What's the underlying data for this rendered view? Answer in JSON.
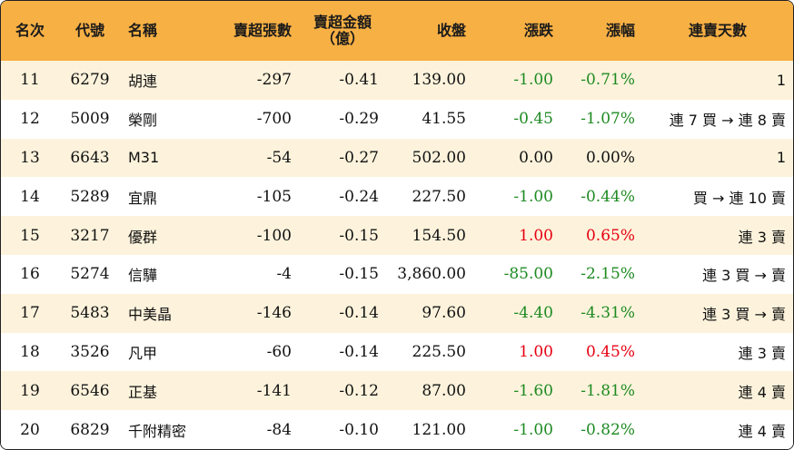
{
  "header": {
    "rank": "名次",
    "code": "代號",
    "name": "名稱",
    "sell_shares": "賣超張數",
    "sell_amount_line1": "賣超金額",
    "sell_amount_line2": "（億）",
    "close": "收盤",
    "change": "漲跌",
    "pct": "漲幅",
    "streak": "連賣天數"
  },
  "colors": {
    "header_bg": "#f7b044",
    "stripe_bg": "#fdf3dc",
    "up": "#e60012",
    "down": "#1e8a22"
  },
  "rows": [
    {
      "rank": "11",
      "code": "6279",
      "name": "胡連",
      "shares": "-297",
      "amount": "-0.41",
      "close": "139.00",
      "change": "-1.00",
      "pct": "-0.71%",
      "dir": "down",
      "streak": "1"
    },
    {
      "rank": "12",
      "code": "5009",
      "name": "榮剛",
      "shares": "-700",
      "amount": "-0.29",
      "close": "41.55",
      "change": "-0.45",
      "pct": "-1.07%",
      "dir": "down",
      "streak": "連 7 買 → 連 8 賣"
    },
    {
      "rank": "13",
      "code": "6643",
      "name": "M31",
      "shares": "-54",
      "amount": "-0.27",
      "close": "502.00",
      "change": "0.00",
      "pct": "0.00%",
      "dir": "flat",
      "streak": "1"
    },
    {
      "rank": "14",
      "code": "5289",
      "name": "宜鼎",
      "shares": "-105",
      "amount": "-0.24",
      "close": "227.50",
      "change": "-1.00",
      "pct": "-0.44%",
      "dir": "down",
      "streak": "買 → 連 10 賣"
    },
    {
      "rank": "15",
      "code": "3217",
      "name": "優群",
      "shares": "-100",
      "amount": "-0.15",
      "close": "154.50",
      "change": "1.00",
      "pct": "0.65%",
      "dir": "up",
      "streak": "連 3 賣"
    },
    {
      "rank": "16",
      "code": "5274",
      "name": "信驊",
      "shares": "-4",
      "amount": "-0.15",
      "close": "3,860.00",
      "change": "-85.00",
      "pct": "-2.15%",
      "dir": "down",
      "streak": "連 3 買 → 賣"
    },
    {
      "rank": "17",
      "code": "5483",
      "name": "中美晶",
      "shares": "-146",
      "amount": "-0.14",
      "close": "97.60",
      "change": "-4.40",
      "pct": "-4.31%",
      "dir": "down",
      "streak": "連 3 買 → 賣"
    },
    {
      "rank": "18",
      "code": "3526",
      "name": "凡甲",
      "shares": "-60",
      "amount": "-0.14",
      "close": "225.50",
      "change": "1.00",
      "pct": "0.45%",
      "dir": "up",
      "streak": "連 3 賣"
    },
    {
      "rank": "19",
      "code": "6546",
      "name": "正基",
      "shares": "-141",
      "amount": "-0.12",
      "close": "87.00",
      "change": "-1.60",
      "pct": "-1.81%",
      "dir": "down",
      "streak": "連 4 賣"
    },
    {
      "rank": "20",
      "code": "6829",
      "name": "千附精密",
      "shares": "-84",
      "amount": "-0.10",
      "close": "121.00",
      "change": "-1.00",
      "pct": "-0.82%",
      "dir": "down",
      "streak": "連 4 賣"
    }
  ]
}
